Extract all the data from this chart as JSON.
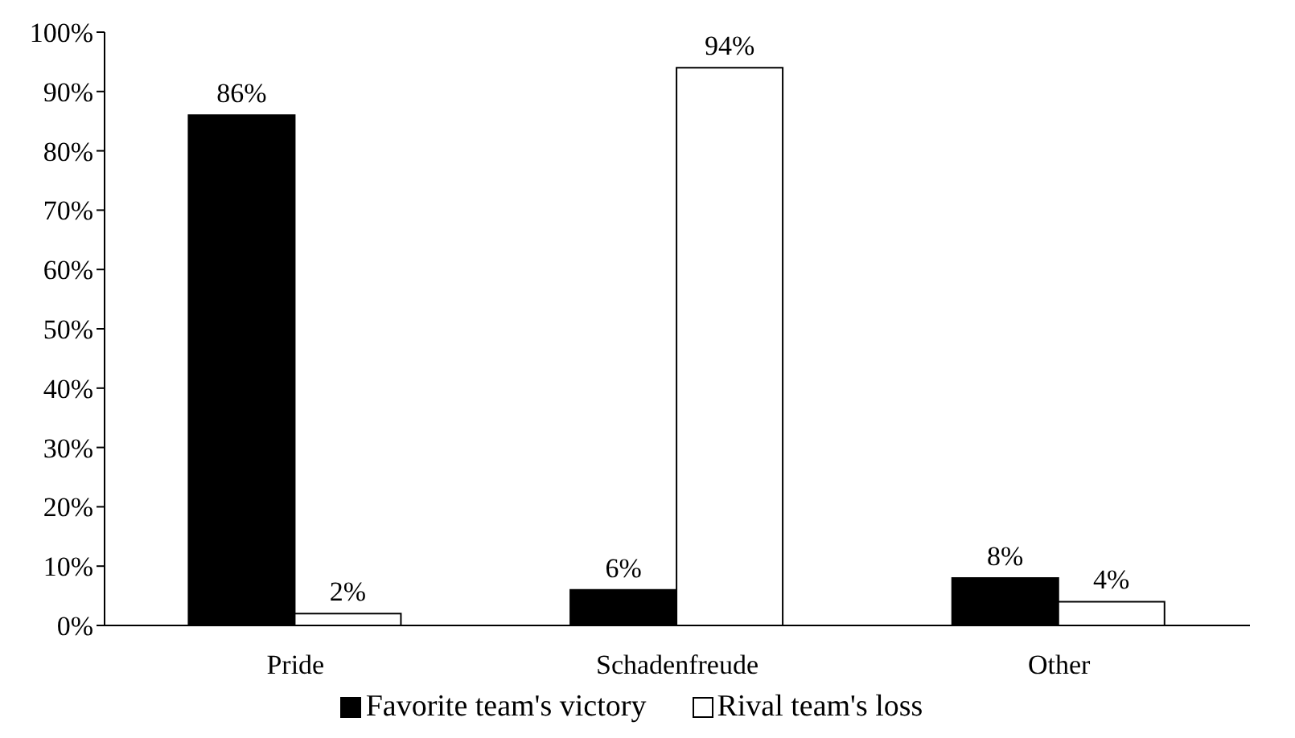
{
  "chart_data": {
    "type": "bar",
    "categories": [
      "Pride",
      "Schadenfreude",
      "Other"
    ],
    "series": [
      {
        "name": "Favorite team's victory",
        "color": "#000000",
        "values": [
          86,
          6,
          8
        ],
        "value_labels": [
          "86%",
          "6%",
          "8%"
        ]
      },
      {
        "name": "Rival team's loss",
        "color": "#ffffff",
        "values": [
          2,
          94,
          4
        ],
        "value_labels": [
          "2%",
          "94%",
          "4%"
        ]
      }
    ],
    "ylim": [
      0,
      100
    ],
    "yticks": [
      {
        "value": 0,
        "label": "0%"
      },
      {
        "value": 10,
        "label": "10%"
      },
      {
        "value": 20,
        "label": "20%"
      },
      {
        "value": 30,
        "label": "30%"
      },
      {
        "value": 40,
        "label": "40%"
      },
      {
        "value": 50,
        "label": "50%"
      },
      {
        "value": 60,
        "label": "60%"
      },
      {
        "value": 70,
        "label": "70%"
      },
      {
        "value": 80,
        "label": "80%"
      },
      {
        "value": 90,
        "label": "90%"
      },
      {
        "value": 100,
        "label": "100%"
      }
    ],
    "grid": false,
    "legend": "bottom"
  }
}
